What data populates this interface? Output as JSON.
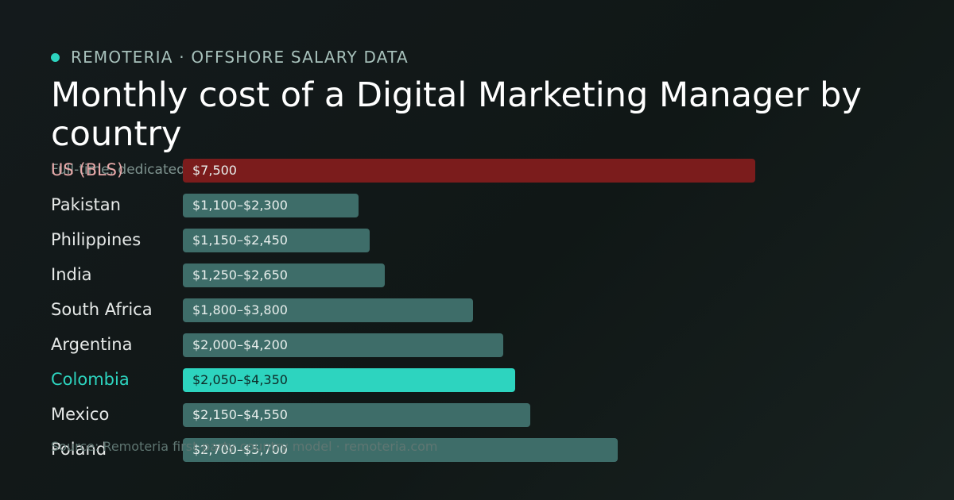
{
  "brand": {
    "name": "REMOTERIA · OFFSHORE SALARY DATA"
  },
  "colors": {
    "bar_default": "#3e6d69",
    "bar_baseline": "#7b1c1c",
    "bar_highlight": "#2dd4bf",
    "label_highlight": "#2dd4bf",
    "label_baseline": "#e8a9a9"
  },
  "chart_data": {
    "type": "bar",
    "orientation": "horizontal",
    "title": "Monthly cost of a Digital Marketing Manager by country",
    "subtitle": "Full-time, dedicated",
    "xlim": [
      0,
      7500
    ],
    "grid": false,
    "categories": [
      "US (BLS)",
      "Pakistan",
      "Philippines",
      "India",
      "South Africa",
      "Argentina",
      "Colombia",
      "Mexico",
      "Poland"
    ],
    "series": [
      {
        "low": [
          7500,
          1100,
          1150,
          1250,
          1800,
          2000,
          2050,
          2150,
          2700
        ],
        "high": [
          7500,
          2300,
          2450,
          2650,
          3800,
          4200,
          4350,
          4550,
          5700
        ],
        "labels": [
          "$7,500",
          "$1,100–$2,300",
          "$1,150–$2,450",
          "$1,250–$2,650",
          "$1,800–$3,800",
          "$2,000–$4,200",
          "$2,050–$4,350",
          "$2,150–$4,550",
          "$2,700–$5,700"
        ]
      }
    ],
    "baseline_category": "US (BLS)",
    "highlight_category": "Colombia"
  },
  "footer": {
    "source": "Source: Remoteria first-party country model · remoteria.com"
  }
}
